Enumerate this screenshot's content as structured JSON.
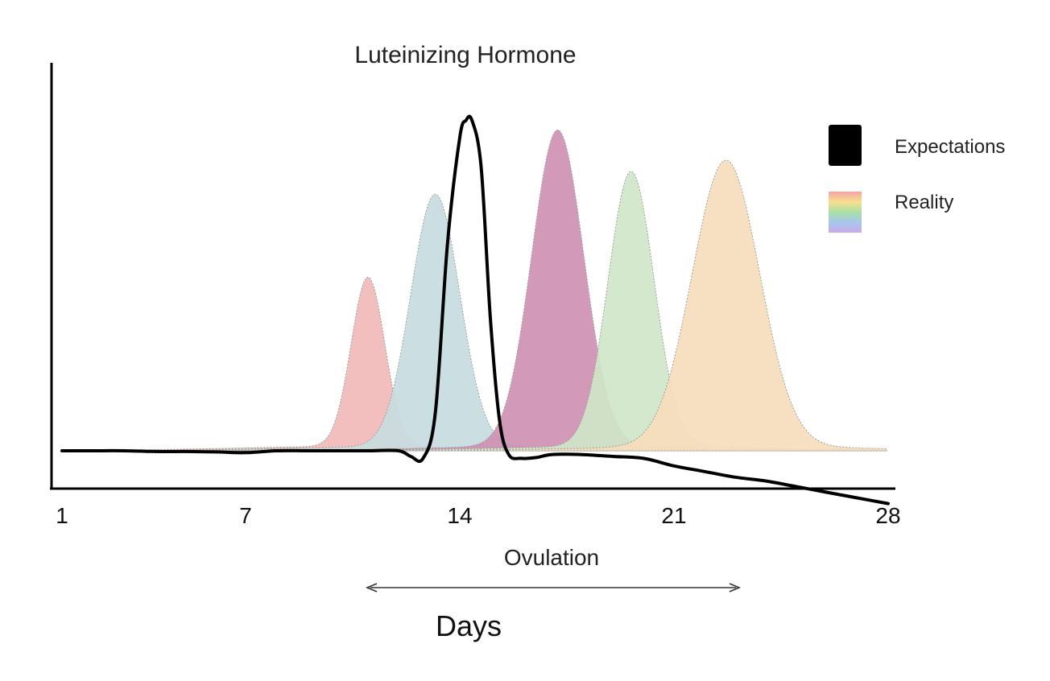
{
  "chart_data": {
    "type": "area",
    "title": "Luteinizing Hormone",
    "xlabel": "Ovulation",
    "days_label": "Days",
    "xlim": [
      1,
      28
    ],
    "ylim": [
      0,
      1
    ],
    "xticks": [
      1,
      7,
      14,
      21,
      28
    ],
    "legend_position": "top-right",
    "legend": [
      {
        "label": "Expectations",
        "swatch": "solid",
        "color": "#000000"
      },
      {
        "label": "Reality",
        "swatch": "gradient",
        "colors": [
          "#f4a3a3",
          "#f7e08f",
          "#a9e0a3",
          "#a7c7ee",
          "#c9a9e6"
        ]
      }
    ],
    "reality_curves": [
      {
        "color": "#f1b8b8",
        "peak_day": 11.0,
        "peak": 0.56,
        "width": 0.55
      },
      {
        "color": "#c7dcdf",
        "peak_day": 13.2,
        "peak": 0.78,
        "width": 0.8
      },
      {
        "color": "#cf90b3",
        "peak_day": 17.2,
        "peak": 0.95,
        "width": 0.85
      },
      {
        "color": "#cfe6c8",
        "peak_day": 19.6,
        "peak": 0.84,
        "width": 0.75
      },
      {
        "color": "#f6dcbc",
        "peak_day": 22.7,
        "peak": 0.87,
        "width": 1.1
      }
    ],
    "expectations_curve": {
      "color": "#000000",
      "x": [
        1,
        2,
        3,
        4,
        5,
        6,
        7,
        8,
        9,
        10,
        11,
        12,
        12.4,
        12.8,
        13.2,
        13.6,
        14.0,
        14.2,
        14.4,
        14.7,
        15.0,
        15.3,
        15.6,
        16.0,
        16.5,
        17,
        18,
        19,
        20,
        21,
        22,
        23,
        24,
        25,
        26,
        27,
        28
      ],
      "y": [
        0.1,
        0.1,
        0.1,
        0.098,
        0.098,
        0.097,
        0.095,
        0.1,
        0.1,
        0.1,
        0.1,
        0.1,
        0.085,
        0.08,
        0.2,
        0.65,
        0.93,
        0.975,
        0.975,
        0.85,
        0.45,
        0.18,
        0.09,
        0.08,
        0.082,
        0.09,
        0.09,
        0.085,
        0.08,
        0.06,
        0.045,
        0.03,
        0.02,
        0.005,
        -0.01,
        -0.025,
        -0.04
      ]
    }
  }
}
